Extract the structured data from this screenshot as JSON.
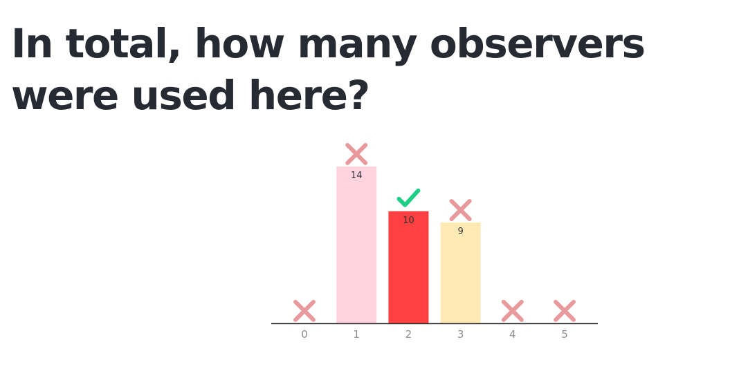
{
  "question": {
    "text": "In total, how many observers were used here?"
  },
  "chart_data": {
    "type": "bar",
    "title": "",
    "xlabel": "",
    "ylabel": "",
    "categories": [
      "0",
      "1",
      "2",
      "3",
      "4",
      "5"
    ],
    "values": [
      0,
      14,
      10,
      9,
      0,
      0
    ],
    "ylim": [
      0,
      14
    ],
    "grid": false,
    "bar_colors": [
      "#ffd3e0",
      "#ffd3e0",
      "#ff4040",
      "#ffeab6",
      "#ffd3e0",
      "#ffd3e0"
    ],
    "marks": [
      "wrong",
      "wrong",
      "correct",
      "wrong",
      "wrong",
      "wrong"
    ],
    "mark_colors": {
      "wrong": "#e8999b",
      "correct": "#1fcf87"
    },
    "axis_color": "#333333"
  }
}
